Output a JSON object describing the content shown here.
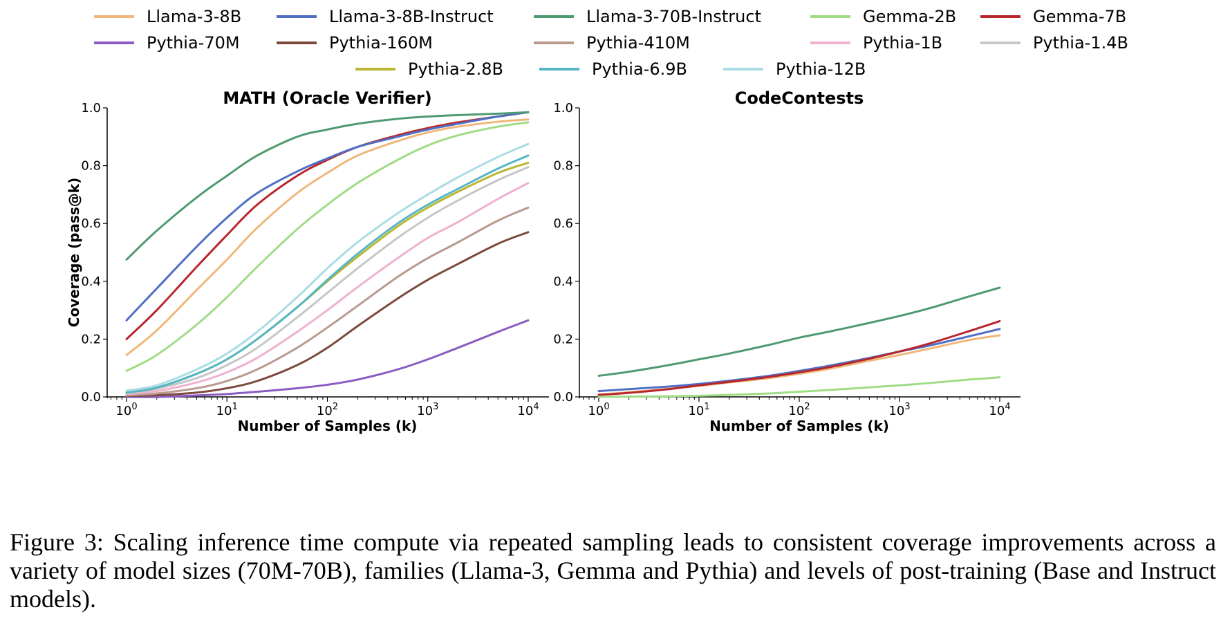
{
  "legend": [
    {
      "name": "Llama-3-8B",
      "color": "#f0b77a"
    },
    {
      "name": "Llama-3-8B-Instruct",
      "color": "#4f6fc4"
    },
    {
      "name": "Llama-3-70B-Instruct",
      "color": "#4f9a70"
    },
    {
      "name": "Gemma-2B",
      "color": "#9fdc86"
    },
    {
      "name": "Gemma-7B",
      "color": "#b8262c"
    },
    {
      "name": "Pythia-70M",
      "color": "#8a5cc2"
    },
    {
      "name": "Pythia-160M",
      "color": "#7b4a3c"
    },
    {
      "name": "Pythia-410M",
      "color": "#b89a8f"
    },
    {
      "name": "Pythia-1B",
      "color": "#eeb1d0"
    },
    {
      "name": "Pythia-1.4B",
      "color": "#c6c6c6"
    },
    {
      "name": "Pythia-2.8B",
      "color": "#b9b731"
    },
    {
      "name": "Pythia-6.9B",
      "color": "#56b5c6"
    },
    {
      "name": "Pythia-12B",
      "color": "#a9dce3"
    }
  ],
  "chart_data": [
    {
      "type": "line",
      "title": "MATH (Oracle Verifier)",
      "xlabel": "Number of Samples (k)",
      "ylabel": "Coverage (pass@k)",
      "xscale": "log",
      "x": [
        1,
        2,
        5,
        10,
        20,
        50,
        100,
        200,
        500,
        1000,
        2000,
        5000,
        10000
      ],
      "xticks": [
        "10^0",
        "10^1",
        "10^2",
        "10^3",
        "10^4"
      ],
      "yticks": [
        "0.0",
        "0.2",
        "0.4",
        "0.6",
        "0.8",
        "1.0"
      ],
      "ylim": [
        0,
        1
      ],
      "series": [
        {
          "name": "Pythia-70M",
          "values": [
            0.0,
            0.0,
            0.005,
            0.01,
            0.018,
            0.03,
            0.042,
            0.06,
            0.095,
            0.13,
            0.17,
            0.225,
            0.265
          ]
        },
        {
          "name": "Pythia-160M",
          "values": [
            0.003,
            0.006,
            0.015,
            0.03,
            0.055,
            0.11,
            0.17,
            0.245,
            0.34,
            0.405,
            0.46,
            0.53,
            0.57
          ]
        },
        {
          "name": "Pythia-410M",
          "values": [
            0.005,
            0.012,
            0.03,
            0.055,
            0.095,
            0.17,
            0.24,
            0.315,
            0.415,
            0.48,
            0.535,
            0.61,
            0.655
          ]
        },
        {
          "name": "Pythia-1B",
          "values": [
            0.01,
            0.02,
            0.05,
            0.085,
            0.135,
            0.225,
            0.3,
            0.38,
            0.48,
            0.55,
            0.605,
            0.685,
            0.74
          ]
        },
        {
          "name": "Pythia-1.4B",
          "values": [
            0.012,
            0.028,
            0.065,
            0.11,
            0.17,
            0.275,
            0.36,
            0.445,
            0.55,
            0.62,
            0.68,
            0.75,
            0.795
          ]
        },
        {
          "name": "Pythia-2.8B",
          "values": [
            0.015,
            0.032,
            0.08,
            0.13,
            0.2,
            0.31,
            0.4,
            0.485,
            0.59,
            0.655,
            0.71,
            0.775,
            0.81
          ]
        },
        {
          "name": "Pythia-6.9B",
          "values": [
            0.015,
            0.032,
            0.08,
            0.13,
            0.2,
            0.31,
            0.405,
            0.495,
            0.6,
            0.665,
            0.72,
            0.79,
            0.835
          ]
        },
        {
          "name": "Pythia-12B",
          "values": [
            0.022,
            0.04,
            0.095,
            0.15,
            0.225,
            0.345,
            0.445,
            0.535,
            0.635,
            0.7,
            0.76,
            0.83,
            0.875
          ]
        },
        {
          "name": "Gemma-2B",
          "values": [
            0.09,
            0.145,
            0.25,
            0.345,
            0.45,
            0.58,
            0.665,
            0.74,
            0.82,
            0.87,
            0.905,
            0.935,
            0.95
          ]
        },
        {
          "name": "Llama-3-8B",
          "values": [
            0.145,
            0.23,
            0.37,
            0.475,
            0.585,
            0.705,
            0.775,
            0.835,
            0.885,
            0.915,
            0.935,
            0.952,
            0.96
          ]
        },
        {
          "name": "Gemma-7B",
          "values": [
            0.2,
            0.3,
            0.45,
            0.56,
            0.665,
            0.765,
            0.82,
            0.865,
            0.905,
            0.93,
            0.95,
            0.97,
            0.985
          ]
        },
        {
          "name": "Llama-3-8B-Instruct",
          "values": [
            0.265,
            0.375,
            0.52,
            0.62,
            0.705,
            0.78,
            0.825,
            0.865,
            0.9,
            0.925,
            0.945,
            0.97,
            0.985
          ]
        },
        {
          "name": "Llama-3-70B-Instruct",
          "values": [
            0.475,
            0.575,
            0.69,
            0.765,
            0.835,
            0.9,
            0.925,
            0.945,
            0.962,
            0.97,
            0.975,
            0.98,
            0.985
          ]
        }
      ]
    },
    {
      "type": "line",
      "title": "CodeContests",
      "xlabel": "Number of Samples (k)",
      "ylabel": "",
      "xscale": "log",
      "x": [
        1,
        2,
        5,
        10,
        20,
        50,
        100,
        200,
        500,
        1000,
        2000,
        5000,
        10000
      ],
      "xticks": [
        "10^0",
        "10^1",
        "10^2",
        "10^3",
        "10^4"
      ],
      "yticks": [
        "0.0",
        "0.2",
        "0.4",
        "0.6",
        "0.8",
        "1.0"
      ],
      "ylim": [
        0,
        1
      ],
      "series": [
        {
          "name": "Gemma-2B",
          "values": [
            0.0,
            0.001,
            0.002,
            0.004,
            0.007,
            0.012,
            0.018,
            0.024,
            0.033,
            0.04,
            0.048,
            0.06,
            0.068
          ]
        },
        {
          "name": "Llama-3-8B",
          "values": [
            0.008,
            0.016,
            0.028,
            0.038,
            0.05,
            0.065,
            0.08,
            0.097,
            0.125,
            0.145,
            0.167,
            0.197,
            0.213
          ]
        },
        {
          "name": "Llama-3-8B-Instruct",
          "values": [
            0.02,
            0.027,
            0.036,
            0.045,
            0.056,
            0.073,
            0.09,
            0.108,
            0.135,
            0.157,
            0.178,
            0.21,
            0.235
          ]
        },
        {
          "name": "Gemma-7B",
          "values": [
            0.007,
            0.014,
            0.027,
            0.04,
            0.052,
            0.069,
            0.085,
            0.103,
            0.132,
            0.157,
            0.185,
            0.228,
            0.262
          ]
        },
        {
          "name": "Llama-3-70B-Instruct",
          "values": [
            0.073,
            0.087,
            0.11,
            0.13,
            0.15,
            0.18,
            0.205,
            0.226,
            0.256,
            0.28,
            0.307,
            0.348,
            0.378
          ]
        }
      ]
    }
  ],
  "caption": "Figure 3: Scaling inference time compute via repeated sampling leads to consistent coverage improvements across a variety of model sizes (70M-70B), families (Llama-3, Gemma and Pythia) and levels of post-training (Base and Instruct models)."
}
